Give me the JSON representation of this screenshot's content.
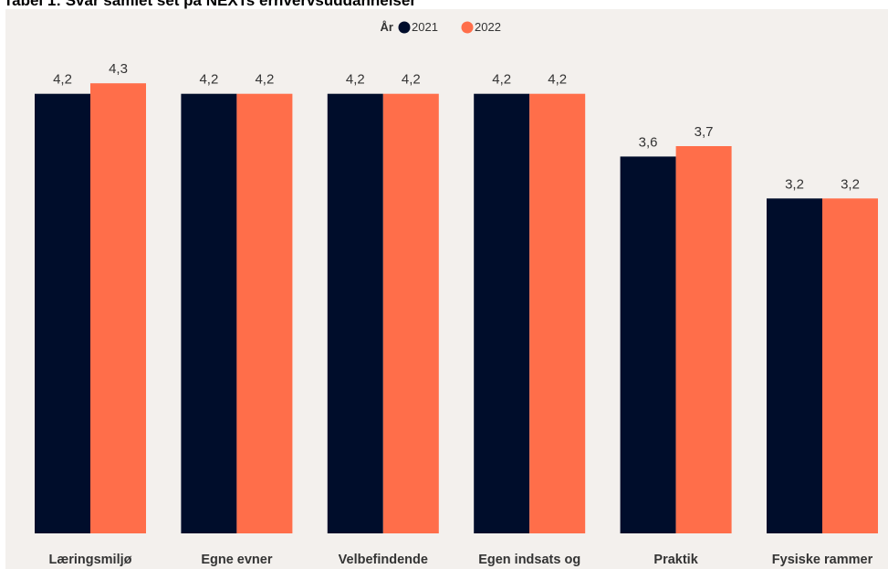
{
  "title": "Tabel 1: Svar samlet set på NEXTs erhvervsuddannelser",
  "legend": {
    "title": "År",
    "position": "top-center"
  },
  "colors": {
    "series_2021": "#000d2b",
    "series_2022": "#ff6e4a",
    "panel_background": "#f3f0ed",
    "value_label": "#333333"
  },
  "chart_data": {
    "type": "bar",
    "title": "",
    "xlabel": "",
    "ylabel": "",
    "ylim": [
      0,
      4.48
    ],
    "grid": false,
    "categories": [
      "Læringsmiljø",
      "Egne evner",
      "Velbefindende",
      "Egen indsats og",
      "Praktik",
      "Fysiske rammer"
    ],
    "series": [
      {
        "name": "2021",
        "values": [
          4.2,
          4.2,
          4.2,
          4.2,
          3.6,
          3.2
        ],
        "labels": [
          "4,2",
          "4,2",
          "4,2",
          "4,2",
          "3,6",
          "3,2"
        ]
      },
      {
        "name": "2022",
        "values": [
          4.3,
          4.2,
          4.2,
          4.2,
          3.7,
          3.2
        ],
        "labels": [
          "4,3",
          "4,2",
          "4,2",
          "4,2",
          "3,7",
          "3,2"
        ]
      }
    ]
  }
}
